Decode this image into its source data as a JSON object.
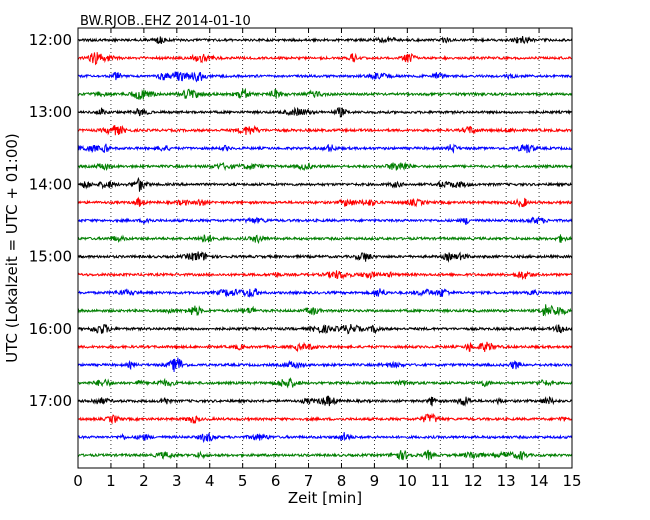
{
  "chart_data": {
    "type": "line",
    "title": "BW.RJOB..EHZ 2014-01-10",
    "xlabel": "Zeit  [min]",
    "ylabel": "UTC (Lokalzeit = UTC + 01:00)",
    "xlim": [
      0,
      15
    ],
    "x_ticks": [
      "0",
      "1",
      "2",
      "3",
      "4",
      "5",
      "6",
      "7",
      "8",
      "9",
      "10",
      "11",
      "12",
      "13",
      "14",
      "15"
    ],
    "y_tick_labels": [
      "12:00",
      "13:00",
      "14:00",
      "15:00",
      "16:00",
      "17:00"
    ],
    "grid": "vertical dotted at each minute",
    "trace_start": "12:00",
    "trace_interval_minutes": 15,
    "trace_count": 24,
    "colors": [
      "#000000",
      "#ff0000",
      "#0000ff",
      "#007f00"
    ]
  }
}
